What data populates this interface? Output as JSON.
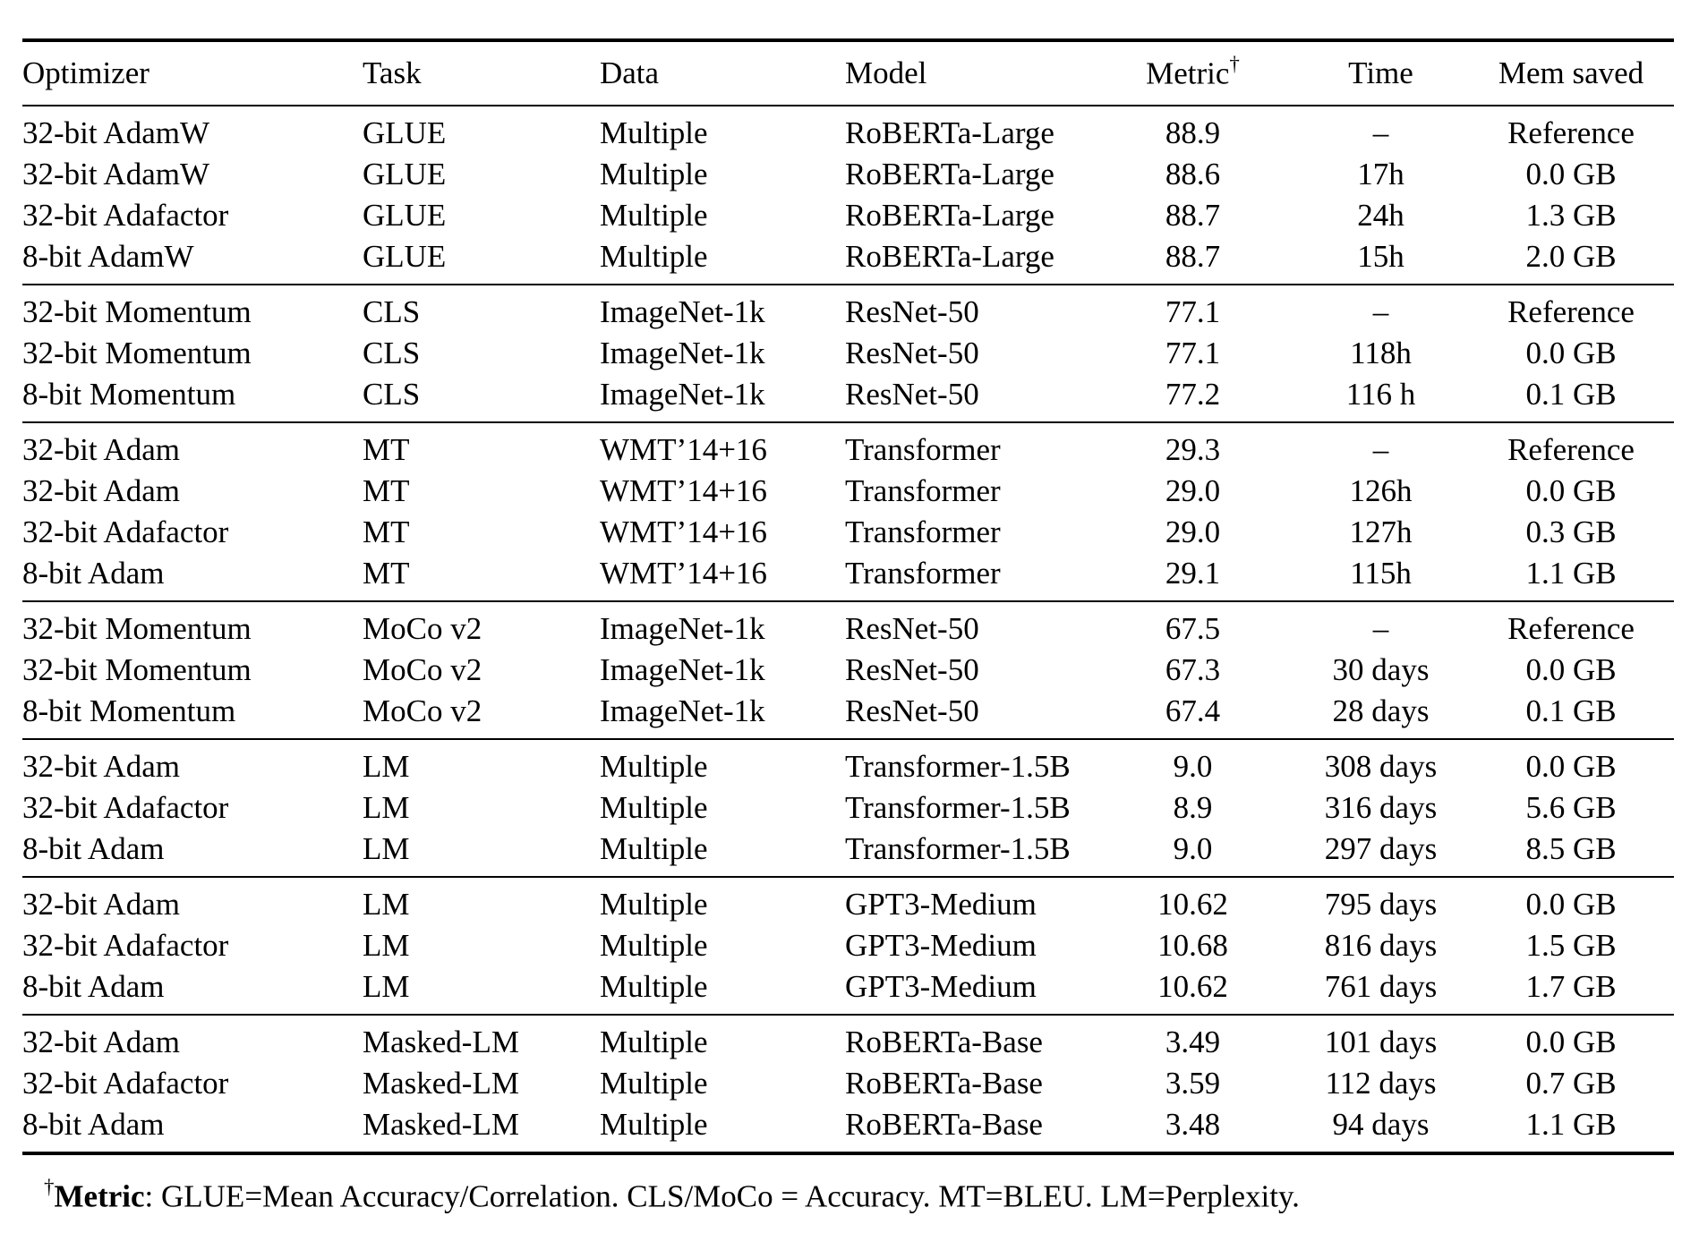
{
  "header": {
    "optimizer": "Optimizer",
    "task": "Task",
    "data": "Data",
    "model": "Model",
    "metric": "Metric",
    "metric_sup": "†",
    "time": "Time",
    "mem_saved": "Mem saved"
  },
  "chart_data": {
    "type": "table",
    "columns": [
      "Optimizer",
      "Task",
      "Data",
      "Model",
      "Metric†",
      "Time",
      "Mem saved"
    ],
    "footnote": "†Metric: GLUE=Mean Accuracy/Correlation. CLS/MoCo = Accuracy. MT=BLEU. LM=Perplexity."
  },
  "groups": [
    {
      "rows": [
        {
          "optimizer": "32-bit AdamW",
          "task": "GLUE",
          "data": "Multiple",
          "model": "RoBERTa-Large",
          "metric": "88.9",
          "time": "–",
          "mem": "Reference",
          "bold": []
        },
        {
          "optimizer": "32-bit AdamW",
          "task": "GLUE",
          "data": "Multiple",
          "model": "RoBERTa-Large",
          "metric": "88.6",
          "time": "17h",
          "mem": "0.0 GB",
          "bold": []
        },
        {
          "optimizer": "32-bit Adafactor",
          "task": "GLUE",
          "data": "Multiple",
          "model": "RoBERTa-Large",
          "metric": "88.7",
          "time": "24h",
          "mem": "1.3 GB",
          "bold": [
            "metric"
          ]
        },
        {
          "optimizer": "8-bit AdamW",
          "task": "GLUE",
          "data": "Multiple",
          "model": "RoBERTa-Large",
          "metric": "88.7",
          "time": "15h",
          "mem": "2.0 GB",
          "bold": [
            "metric",
            "time",
            "mem"
          ]
        }
      ]
    },
    {
      "rows": [
        {
          "optimizer": "32-bit Momentum",
          "task": "CLS",
          "data": "ImageNet-1k",
          "model": "ResNet-50",
          "metric": "77.1",
          "time": "–",
          "mem": "Reference",
          "bold": []
        },
        {
          "optimizer": "32-bit Momentum",
          "task": "CLS",
          "data": "ImageNet-1k",
          "model": "ResNet-50",
          "metric": "77.1",
          "time": "118h",
          "mem": "0.0 GB",
          "bold": []
        },
        {
          "optimizer": "8-bit Momentum",
          "task": "CLS",
          "data": "ImageNet-1k",
          "model": "ResNet-50",
          "metric": "77.2",
          "time": "116 h",
          "mem": "0.1 GB",
          "bold": [
            "metric",
            "time",
            "mem"
          ]
        }
      ]
    },
    {
      "rows": [
        {
          "optimizer": "32-bit Adam",
          "task": "MT",
          "data": "WMT’14+16",
          "model": "Transformer",
          "metric": "29.3",
          "time": "–",
          "mem": "Reference",
          "bold": []
        },
        {
          "optimizer": "32-bit Adam",
          "task": "MT",
          "data": "WMT’14+16",
          "model": "Transformer",
          "metric": "29.0",
          "time": "126h",
          "mem": "0.0 GB",
          "bold": []
        },
        {
          "optimizer": "32-bit Adafactor",
          "task": "MT",
          "data": "WMT’14+16",
          "model": "Transformer",
          "metric": "29.0",
          "time": "127h",
          "mem": "0.3 GB",
          "bold": []
        },
        {
          "optimizer": "8-bit Adam",
          "task": "MT",
          "data": "WMT’14+16",
          "model": "Transformer",
          "metric": "29.1",
          "time": "115h",
          "mem": "1.1 GB",
          "bold": [
            "metric",
            "time",
            "mem"
          ]
        }
      ]
    },
    {
      "rows": [
        {
          "optimizer": "32-bit Momentum",
          "task": "MoCo v2",
          "data": "ImageNet-1k",
          "model": "ResNet-50",
          "metric": "67.5",
          "time": "–",
          "mem": "Reference",
          "bold": []
        },
        {
          "optimizer": "32-bit Momentum",
          "task": "MoCo v2",
          "data": "ImageNet-1k",
          "model": "ResNet-50",
          "metric": "67.3",
          "time": "30 days",
          "mem": "0.0 GB",
          "bold": []
        },
        {
          "optimizer": "8-bit Momentum",
          "task": "MoCo v2",
          "data": "ImageNet-1k",
          "model": "ResNet-50",
          "metric": "67.4",
          "time": "28 days",
          "mem": "0.1 GB",
          "bold": [
            "metric",
            "time",
            "mem"
          ]
        }
      ]
    },
    {
      "rows": [
        {
          "optimizer": "32-bit Adam",
          "task": "LM",
          "data": "Multiple",
          "model": "Transformer-1.5B",
          "metric": "9.0",
          "time": "308 days",
          "mem": "0.0 GB",
          "bold": []
        },
        {
          "optimizer": "32-bit Adafactor",
          "task": "LM",
          "data": "Multiple",
          "model": "Transformer-1.5B",
          "metric": "8.9",
          "time": "316 days",
          "mem": "5.6 GB",
          "bold": [
            "metric"
          ]
        },
        {
          "optimizer": "8-bit Adam",
          "task": "LM",
          "data": "Multiple",
          "model": "Transformer-1.5B",
          "metric": "9.0",
          "time": "297 days",
          "mem": "8.5 GB",
          "bold": [
            "time",
            "mem"
          ]
        }
      ]
    },
    {
      "rows": [
        {
          "optimizer": "32-bit Adam",
          "task": "LM",
          "data": "Multiple",
          "model": "GPT3-Medium",
          "metric": "10.62",
          "time": "795 days",
          "mem": "0.0 GB",
          "bold": []
        },
        {
          "optimizer": "32-bit Adafactor",
          "task": "LM",
          "data": "Multiple",
          "model": "GPT3-Medium",
          "metric": "10.68",
          "time": "816 days",
          "mem": "1.5 GB",
          "bold": []
        },
        {
          "optimizer": "8-bit Adam",
          "task": "LM",
          "data": "Multiple",
          "model": "GPT3-Medium",
          "metric": "10.62",
          "time": "761 days",
          "mem": "1.7 GB",
          "bold": [
            "metric",
            "time",
            "mem"
          ]
        }
      ]
    },
    {
      "rows": [
        {
          "optimizer": "32-bit Adam",
          "task": "Masked-LM",
          "data": "Multiple",
          "model": "RoBERTa-Base",
          "metric": "3.49",
          "time": "101 days",
          "mem": "0.0 GB",
          "bold": []
        },
        {
          "optimizer": "32-bit Adafactor",
          "task": "Masked-LM",
          "data": "Multiple",
          "model": "RoBERTa-Base",
          "metric": "3.59",
          "time": "112 days",
          "mem": "0.7 GB",
          "bold": []
        },
        {
          "optimizer": "8-bit Adam",
          "task": "Masked-LM",
          "data": "Multiple",
          "model": "RoBERTa-Base",
          "metric": "3.48",
          "time": "94 days",
          "mem": "1.1 GB",
          "bold": [
            "metric",
            "time",
            "mem"
          ]
        }
      ]
    }
  ],
  "footnote": {
    "sup": "†",
    "label": "Metric",
    "text": ": GLUE=Mean Accuracy/Correlation. CLS/MoCo = Accuracy. MT=BLEU. LM=Perplexity."
  }
}
